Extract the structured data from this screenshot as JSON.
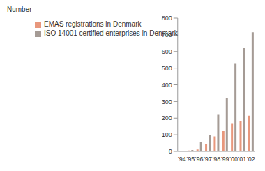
{
  "chart_data": {
    "type": "bar",
    "y_label": "Number",
    "categories": [
      "'94",
      "'95",
      "'96",
      "'97",
      "'98",
      "'99",
      "'00",
      "'01",
      "'02"
    ],
    "series": [
      {
        "name": "EMAS registrations in Denmark",
        "color": "#e8977c",
        "values": [
          0,
          5,
          12,
          42,
          90,
          125,
          170,
          180,
          215
        ]
      },
      {
        "name": "ISO 14001 certified enterprises in Denmark",
        "color": "#a59b95",
        "values": [
          3,
          8,
          55,
          98,
          220,
          320,
          530,
          620,
          715
        ]
      }
    ],
    "ylim": [
      0,
      800
    ],
    "yticks": [
      0,
      100,
      200,
      300,
      400,
      500,
      600,
      700,
      800
    ],
    "grid": false,
    "legend": "upper left"
  }
}
